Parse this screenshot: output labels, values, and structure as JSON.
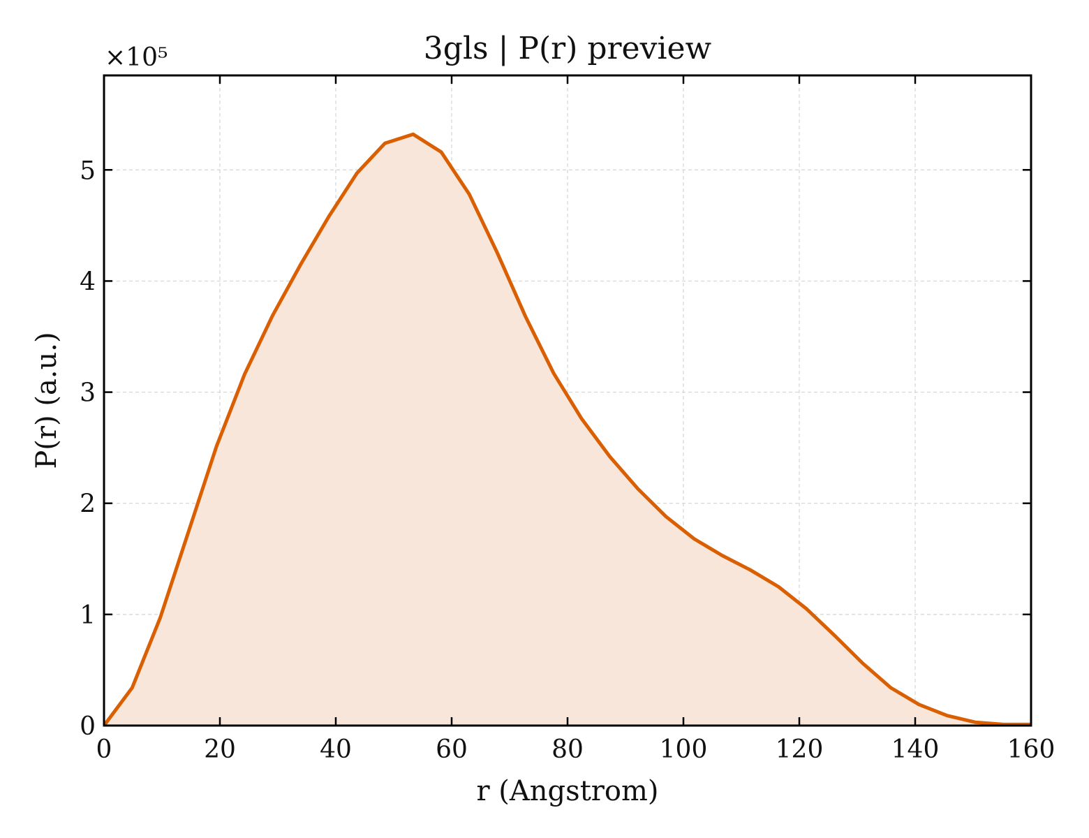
{
  "chart_data": {
    "type": "area",
    "title": "3gls | P(r) preview",
    "xlabel": "r (Angstrom)",
    "ylabel": "P(r) (a.u.)",
    "y_multiplier_label": "×10⁵",
    "y_multiplier": 100000,
    "xlim": [
      0,
      160
    ],
    "ylim": [
      0,
      585000
    ],
    "xticks": [
      0,
      20,
      40,
      60,
      80,
      100,
      120,
      140,
      160
    ],
    "yticks": [
      0,
      100000,
      200000,
      300000,
      400000,
      500000
    ],
    "ytick_labels": [
      "0",
      "1",
      "2",
      "3",
      "4",
      "5"
    ],
    "grid": true,
    "line_color": "#d95f02",
    "fill_color": "#f8e6da",
    "series": [
      {
        "x": [
          0,
          4.85,
          9.7,
          14.55,
          19.4,
          24.25,
          29.1,
          33.95,
          38.8,
          43.65,
          48.5,
          53.35,
          58.2,
          63.05,
          67.9,
          72.75,
          77.6,
          82.45,
          87.3,
          92.15,
          97.0,
          101.85,
          106.7,
          111.55,
          116.4,
          121.25,
          126.1,
          130.95,
          135.8,
          140.65,
          145.5,
          150.35,
          155.2,
          160.0
        ],
        "y": [
          0,
          34000,
          97000,
          174000,
          251000,
          316000,
          369000,
          415000,
          458000,
          497000,
          524000,
          532000,
          516000,
          478000,
          425000,
          368000,
          317000,
          276000,
          242000,
          213000,
          188000,
          168000,
          153000,
          140000,
          125000,
          105000,
          81000,
          56000,
          34000,
          19000,
          9000,
          3000,
          1000,
          1000
        ]
      }
    ]
  }
}
